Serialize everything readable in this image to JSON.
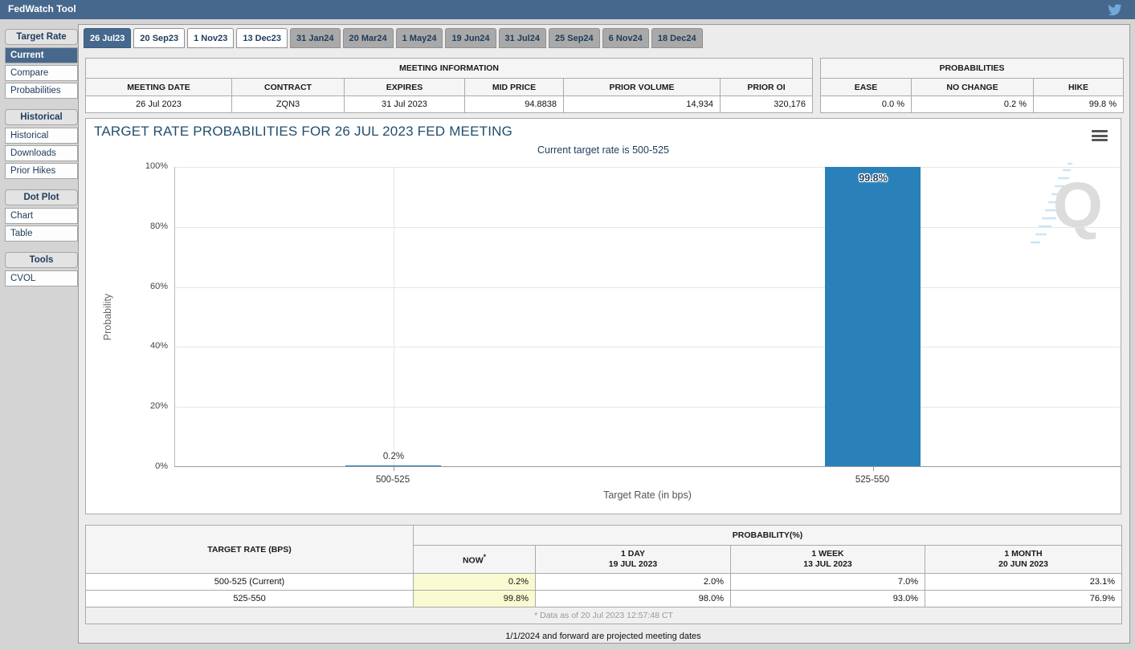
{
  "app": {
    "title": "FedWatch Tool"
  },
  "icons": {
    "twitter": "twitter-bird",
    "chart_menu": "hamburger-menu",
    "watermark_letter": "Q"
  },
  "sidebar": {
    "groups": [
      {
        "header": "Target Rate",
        "items": [
          {
            "label": "Current",
            "selected": true
          },
          {
            "label": "Compare",
            "selected": false
          },
          {
            "label": "Probabilities",
            "selected": false
          }
        ]
      },
      {
        "header": "Historical",
        "items": [
          {
            "label": "Historical",
            "selected": false
          },
          {
            "label": "Downloads",
            "selected": false
          },
          {
            "label": "Prior Hikes",
            "selected": false
          }
        ]
      },
      {
        "header": "Dot Plot",
        "items": [
          {
            "label": "Chart",
            "selected": false
          },
          {
            "label": "Table",
            "selected": false
          }
        ]
      },
      {
        "header": "Tools",
        "items": [
          {
            "label": "CVOL",
            "selected": false
          }
        ]
      }
    ]
  },
  "tabs": [
    {
      "label": "26 Jul23",
      "state": "selected"
    },
    {
      "label": "20 Sep23",
      "state": "default"
    },
    {
      "label": "1 Nov23",
      "state": "default"
    },
    {
      "label": "13 Dec23",
      "state": "default"
    },
    {
      "label": "31 Jan24",
      "state": "projected"
    },
    {
      "label": "20 Mar24",
      "state": "projected"
    },
    {
      "label": "1 May24",
      "state": "projected"
    },
    {
      "label": "19 Jun24",
      "state": "projected"
    },
    {
      "label": "31 Jul24",
      "state": "projected"
    },
    {
      "label": "25 Sep24",
      "state": "projected"
    },
    {
      "label": "6 Nov24",
      "state": "projected"
    },
    {
      "label": "18 Dec24",
      "state": "projected"
    }
  ],
  "meeting_info": {
    "title": "MEETING INFORMATION",
    "columns": [
      "MEETING DATE",
      "CONTRACT",
      "EXPIRES",
      "MID PRICE",
      "PRIOR VOLUME",
      "PRIOR OI"
    ],
    "values": [
      "26 Jul 2023",
      "ZQN3",
      "31 Jul 2023",
      "94.8838",
      "14,934",
      "320,176"
    ]
  },
  "probabilities_summary": {
    "title": "PROBABILITIES",
    "columns": [
      "EASE",
      "NO CHANGE",
      "HIKE"
    ],
    "values": [
      "0.0 %",
      "0.2 %",
      "99.8 %"
    ]
  },
  "chart_data": {
    "type": "bar",
    "title": "TARGET RATE PROBABILITIES FOR 26 JUL 2023 FED MEETING",
    "subtitle": "Current target rate is 500-525",
    "categories": [
      "500-525",
      "525-550"
    ],
    "values": [
      0.2,
      99.8
    ],
    "bar_labels": [
      "0.2%",
      "99.8%"
    ],
    "xlabel": "Target Rate (in bps)",
    "ylabel": "Probability",
    "ylim": [
      0,
      100
    ],
    "yticks": [
      "0%",
      "20%",
      "40%",
      "60%",
      "80%",
      "100%"
    ],
    "grid": true,
    "legend": false,
    "bar_color": "#2a80b9"
  },
  "probability_table": {
    "rate_header": "TARGET RATE (BPS)",
    "group_header": "PROBABILITY(%)",
    "columns": [
      {
        "label": "NOW",
        "sup": "*",
        "sub": ""
      },
      {
        "label": "1 DAY",
        "sup": "",
        "sub": "19 JUL 2023"
      },
      {
        "label": "1 WEEK",
        "sup": "",
        "sub": "13 JUL 2023"
      },
      {
        "label": "1 MONTH",
        "sup": "",
        "sub": "20 JUN 2023"
      }
    ],
    "rows": [
      {
        "rate": "500-525 (Current)",
        "values": [
          "0.2%",
          "2.0%",
          "7.0%",
          "23.1%"
        ]
      },
      {
        "rate": "525-550",
        "values": [
          "99.8%",
          "98.0%",
          "93.0%",
          "76.9%"
        ]
      }
    ],
    "footnote": "* Data as of 20 Jul 2023 12:57:48 CT"
  },
  "projected_note": "1/1/2024 and forward are projected meeting dates",
  "colors": {
    "accent": "#47688d",
    "bar": "#2a80b9",
    "highlight": "#fafad2",
    "tab_projected": "#a9a9a9",
    "title_text": "#1f4e6e"
  }
}
